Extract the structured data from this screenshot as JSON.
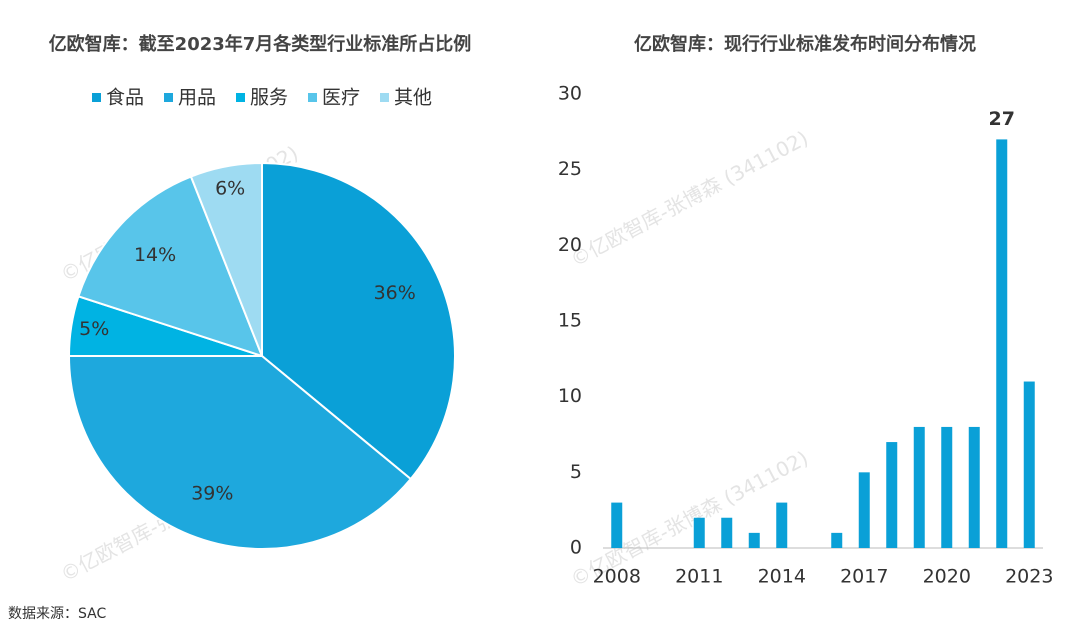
{
  "chart_data": [
    {
      "type": "pie",
      "title": "亿欧智库：截至2023年7月各类型行业标准所占比例",
      "categories": [
        "食品",
        "用品",
        "服务",
        "医疗",
        "其他"
      ],
      "values": [
        36,
        39,
        5,
        14,
        6
      ],
      "value_labels": [
        "36%",
        "39%",
        "5%",
        "14%",
        "6%"
      ],
      "colors": [
        "#0aa0d7",
        "#1ea8dd",
        "#00b3e3",
        "#58c5ea",
        "#9edbf2"
      ],
      "legend": "top"
    },
    {
      "type": "bar",
      "title": "亿欧智库：现行行业标准发布时间分布情况",
      "x": [
        2008,
        2009,
        2010,
        2011,
        2012,
        2013,
        2014,
        2015,
        2016,
        2017,
        2018,
        2019,
        2020,
        2021,
        2022,
        2023
      ],
      "values": [
        3,
        0,
        0,
        2,
        2,
        1,
        3,
        0,
        1,
        5,
        7,
        8,
        8,
        8,
        27,
        11
      ],
      "value_labels": [
        null,
        null,
        null,
        null,
        null,
        null,
        null,
        null,
        null,
        null,
        null,
        null,
        null,
        null,
        "27",
        null
      ],
      "color": "#0aa0d7",
      "xlim": [
        2007.5,
        2023.5
      ],
      "xticks": [
        2008,
        2011,
        2014,
        2017,
        2020,
        2023
      ],
      "ylim": [
        0,
        30
      ],
      "yticks": [
        0,
        5,
        10,
        15,
        20,
        25,
        30
      ],
      "grid": false
    }
  ],
  "source": "数据来源：SAC",
  "watermark": "©亿欧智库-张博森 (341102)"
}
